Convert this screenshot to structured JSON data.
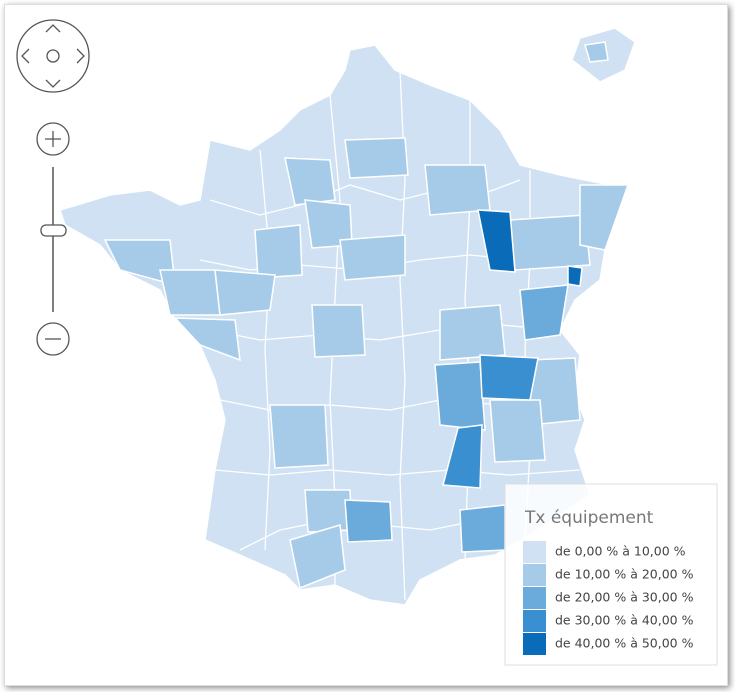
{
  "legend": {
    "title": "Tx équipement",
    "items": [
      {
        "label": "de 0,00 % à 10,00 %",
        "color": "#cfe1f2"
      },
      {
        "label": "de 10,00 % à 20,00 %",
        "color": "#a6cbe8"
      },
      {
        "label": "de 20,00 % à 30,00 %",
        "color": "#6aabdb"
      },
      {
        "label": "de 30,00 % à 40,00 %",
        "color": "#3a8fd0"
      },
      {
        "label": "de 40,00 % à 50,00 %",
        "color": "#0a6cb8"
      }
    ]
  }
}
